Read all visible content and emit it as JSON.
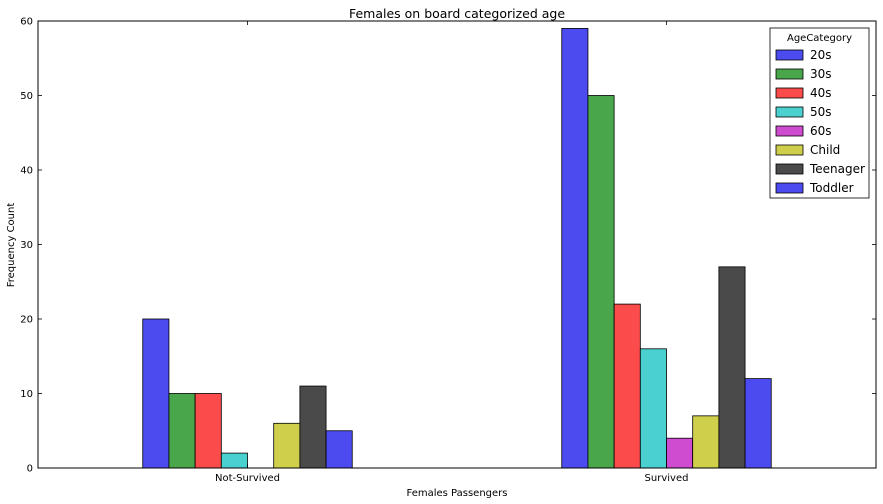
{
  "chart_data": {
    "type": "bar",
    "title": "Females on board categorized age",
    "xlabel": "Females Passengers",
    "ylabel": "Frequency Count",
    "categories": [
      "Not-Survived",
      "Survived"
    ],
    "ylim": [
      0,
      60
    ],
    "yticks": [
      "0",
      "10",
      "20",
      "30",
      "40",
      "50",
      "60"
    ],
    "legend_title": "AgeCategory",
    "legend_position": "top-right",
    "grid": false,
    "series": [
      {
        "name": "20s",
        "color": "#4b4bf0",
        "values": [
          20,
          59
        ]
      },
      {
        "name": "30s",
        "color": "#4aa64a",
        "values": [
          10,
          50
        ]
      },
      {
        "name": "40s",
        "color": "#fb4b4b",
        "values": [
          10,
          22
        ]
      },
      {
        "name": "50s",
        "color": "#4bd0d0",
        "values": [
          2,
          16
        ]
      },
      {
        "name": "60s",
        "color": "#cf4bcf",
        "values": [
          0,
          4
        ]
      },
      {
        "name": "Child",
        "color": "#cfcf4b",
        "values": [
          6,
          7
        ]
      },
      {
        "name": "Teenager",
        "color": "#4a4a4a",
        "values": [
          11,
          27
        ]
      },
      {
        "name": "Toddler",
        "color": "#4b4bf0",
        "values": [
          5,
          12
        ]
      }
    ]
  }
}
